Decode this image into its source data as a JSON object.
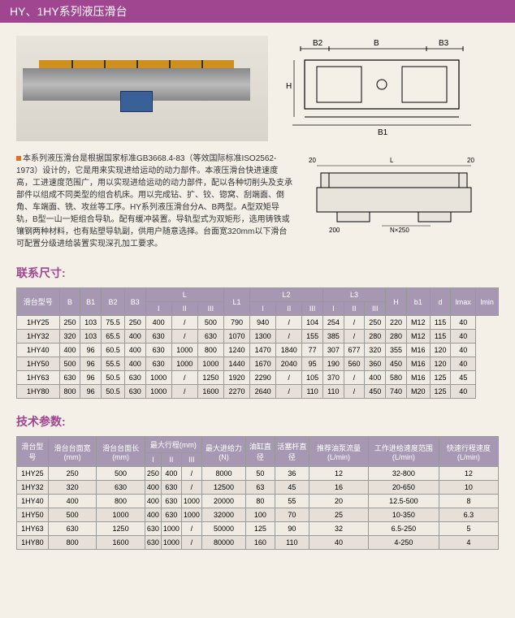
{
  "header": "HY、1HY系列液压滑台",
  "description": "本系列液压滑台是根据国家标准GB3668.4-83（等效国际标准ISO2562-1973）设计的，它是用来实现进给运动的动力部件。本液压滑台快进速度高，工进速度范围广，用以实现进给运动的动力部件，配以各种切削头及支承部件以组成不同类型的组合机床。用以完成钻、扩、铰、锪窝、刮端面、倒角、车端面、铣、攻丝等工序。HY系列液压滑台分A、B两型。A型双矩导轨，B型一山一矩组合导轨。配有缓冲装置。导轨型式为双矩形，选用铸铁或镶钢两种材料，也有贴塑导轨副，供用户随意选择。台面宽320mm以下滑台可配置分级进给装置实现深孔加工要求。",
  "section1_title": "联系尺寸:",
  "section2_title": "技术参数:",
  "table1": {
    "header_groups": [
      "滑台型号",
      "B",
      "B1",
      "B2",
      "B3",
      "L",
      "",
      "",
      "L1",
      "L2",
      "",
      "",
      "L3",
      "",
      "",
      "H",
      "b1",
      "d",
      "lmax",
      "lmin"
    ],
    "sub": [
      "",
      "",
      "",
      "",
      "",
      "I",
      "II",
      "III",
      "",
      "I",
      "II",
      "III",
      "I",
      "II",
      "III",
      "",
      "",
      "",
      "",
      ""
    ],
    "rows": [
      [
        "1HY25",
        "250",
        "103",
        "75.5",
        "250",
        "400",
        "/",
        "500",
        "790",
        "940",
        "/",
        "104",
        "254",
        "/",
        "250",
        "220",
        "M12",
        "115",
        "40"
      ],
      [
        "1HY32",
        "320",
        "103",
        "65.5",
        "400",
        "630",
        "/",
        "630",
        "1070",
        "1300",
        "/",
        "155",
        "385",
        "/",
        "280",
        "280",
        "M12",
        "115",
        "40"
      ],
      [
        "1HY40",
        "400",
        "96",
        "60.5",
        "400",
        "630",
        "1000",
        "800",
        "1240",
        "1470",
        "1840",
        "77",
        "307",
        "677",
        "320",
        "355",
        "M16",
        "120",
        "40"
      ],
      [
        "1HY50",
        "500",
        "96",
        "55.5",
        "400",
        "630",
        "1000",
        "1000",
        "1440",
        "1670",
        "2040",
        "95",
        "190",
        "560",
        "360",
        "450",
        "M16",
        "120",
        "40"
      ],
      [
        "1HY63",
        "630",
        "96",
        "50.5",
        "630",
        "1000",
        "/",
        "1250",
        "1920",
        "2290",
        "/",
        "105",
        "370",
        "/",
        "400",
        "580",
        "M16",
        "125",
        "45"
      ],
      [
        "1HY80",
        "800",
        "96",
        "50.5",
        "630",
        "1000",
        "/",
        "1600",
        "2270",
        "2640",
        "/",
        "110",
        "110",
        "/",
        "450",
        "740",
        "M20",
        "125",
        "40"
      ]
    ]
  },
  "table2": {
    "header_groups": [
      "滑台型号",
      "滑台台面宽(mm)",
      "滑台台面长(mm)",
      "最大行程(mm)",
      "",
      "",
      "最大进给力(N)",
      "油缸直径",
      "活塞杆直径",
      "推荐油泵流量(L/min)",
      "工作进给速度范围(L/min)",
      "快速行程速度(L/min)"
    ],
    "sub": [
      "",
      "",
      "",
      "I",
      "II",
      "III",
      "",
      "",
      "",
      "",
      "",
      ""
    ],
    "rows": [
      [
        "1HY25",
        "250",
        "500",
        "250",
        "400",
        "/",
        "8000",
        "50",
        "36",
        "12",
        "32-800",
        "12"
      ],
      [
        "1HY32",
        "320",
        "630",
        "400",
        "630",
        "/",
        "12500",
        "63",
        "45",
        "16",
        "20-650",
        "10"
      ],
      [
        "1HY40",
        "400",
        "800",
        "400",
        "630",
        "1000",
        "20000",
        "80",
        "55",
        "20",
        "12.5-500",
        "8"
      ],
      [
        "1HY50",
        "500",
        "1000",
        "400",
        "630",
        "1000",
        "32000",
        "100",
        "70",
        "25",
        "10-350",
        "6.3"
      ],
      [
        "1HY63",
        "630",
        "1250",
        "630",
        "1000",
        "/",
        "50000",
        "125",
        "90",
        "32",
        "6.5-250",
        "5"
      ],
      [
        "1HY80",
        "800",
        "1600",
        "630",
        "1000",
        "/",
        "80000",
        "160",
        "110",
        "40",
        "4-250",
        "4"
      ]
    ]
  }
}
